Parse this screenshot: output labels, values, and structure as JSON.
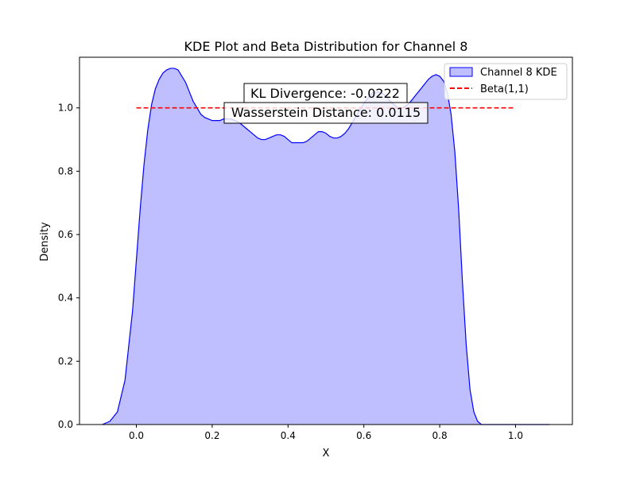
{
  "chart_data": {
    "type": "area",
    "title": "KDE Plot and Beta Distribution for Channel 8",
    "xlabel": "X",
    "ylabel": "Density",
    "xlim": [
      -0.15,
      1.15
    ],
    "ylim": [
      0,
      1.16
    ],
    "xticks": [
      0.0,
      0.2,
      0.4,
      0.6,
      0.8,
      1.0
    ],
    "xtick_labels": [
      "0.0",
      "0.2",
      "0.4",
      "0.6",
      "0.8",
      "1.0"
    ],
    "yticks": [
      0.0,
      0.2,
      0.4,
      0.6,
      0.8,
      1.0
    ],
    "ytick_labels": [
      "0.0",
      "0.2",
      "0.4",
      "0.6",
      "0.8",
      "1.0"
    ],
    "grid": false,
    "legend_position": "top-right",
    "series": [
      {
        "name": "Channel 8 KDE",
        "kind": "kde-filled",
        "color": "#0000ff",
        "fill": "#bfbfff",
        "x": [
          -0.09,
          -0.07,
          -0.05,
          -0.03,
          -0.01,
          0.0,
          0.01,
          0.02,
          0.03,
          0.04,
          0.05,
          0.06,
          0.07,
          0.08,
          0.09,
          0.1,
          0.11,
          0.12,
          0.13,
          0.14,
          0.15,
          0.16,
          0.17,
          0.18,
          0.19,
          0.2,
          0.21,
          0.22,
          0.23,
          0.24,
          0.25,
          0.26,
          0.27,
          0.28,
          0.29,
          0.3,
          0.31,
          0.32,
          0.33,
          0.34,
          0.35,
          0.36,
          0.37,
          0.38,
          0.39,
          0.4,
          0.41,
          0.42,
          0.43,
          0.44,
          0.45,
          0.46,
          0.47,
          0.48,
          0.49,
          0.5,
          0.51,
          0.52,
          0.53,
          0.54,
          0.55,
          0.56,
          0.57,
          0.58,
          0.59,
          0.6,
          0.61,
          0.62,
          0.63,
          0.64,
          0.65,
          0.66,
          0.67,
          0.68,
          0.69,
          0.7,
          0.71,
          0.72,
          0.73,
          0.74,
          0.75,
          0.76,
          0.77,
          0.78,
          0.79,
          0.8,
          0.81,
          0.82,
          0.83,
          0.84,
          0.85,
          0.86,
          0.87,
          0.88,
          0.89,
          0.9,
          0.91,
          0.92,
          0.93,
          0.94,
          0.95,
          0.96,
          0.97,
          0.98,
          0.99,
          1.0,
          1.01,
          1.03,
          1.05,
          1.07,
          1.09
        ],
        "y": [
          0.0,
          0.01,
          0.04,
          0.14,
          0.36,
          0.52,
          0.68,
          0.82,
          0.93,
          1.01,
          1.06,
          1.09,
          1.11,
          1.12,
          1.125,
          1.125,
          1.12,
          1.1,
          1.08,
          1.05,
          1.02,
          1.0,
          0.98,
          0.97,
          0.965,
          0.96,
          0.96,
          0.96,
          0.965,
          0.965,
          0.965,
          0.96,
          0.955,
          0.945,
          0.935,
          0.925,
          0.915,
          0.905,
          0.9,
          0.9,
          0.905,
          0.91,
          0.915,
          0.915,
          0.91,
          0.9,
          0.89,
          0.89,
          0.89,
          0.89,
          0.895,
          0.905,
          0.915,
          0.925,
          0.925,
          0.92,
          0.91,
          0.905,
          0.905,
          0.91,
          0.92,
          0.935,
          0.955,
          0.975,
          0.995,
          1.015,
          1.03,
          1.045,
          1.05,
          1.05,
          1.045,
          1.035,
          1.02,
          1.01,
          1.0,
          1.0,
          1.005,
          1.015,
          1.03,
          1.045,
          1.06,
          1.075,
          1.09,
          1.1,
          1.105,
          1.1,
          1.085,
          1.05,
          0.98,
          0.86,
          0.68,
          0.45,
          0.25,
          0.11,
          0.04,
          0.01,
          0.0,
          0.0,
          0.0,
          0.0,
          0.0,
          0.0,
          0.0,
          0.0,
          0.0,
          0.0,
          0.0,
          0.0,
          0.0,
          0.0,
          0.0
        ]
      },
      {
        "name": "Beta(1,1)",
        "kind": "line",
        "color": "#ff0000",
        "dash": "dashed",
        "x": [
          0.0,
          1.0
        ],
        "y": [
          1.0,
          1.0
        ]
      }
    ],
    "annotations": [
      {
        "text": "KL Divergence: -0.0222",
        "x": 0.5,
        "y": 1.07
      },
      {
        "text": "Wasserstein Distance: 0.0115",
        "x": 0.5,
        "y": 1.01
      }
    ]
  }
}
